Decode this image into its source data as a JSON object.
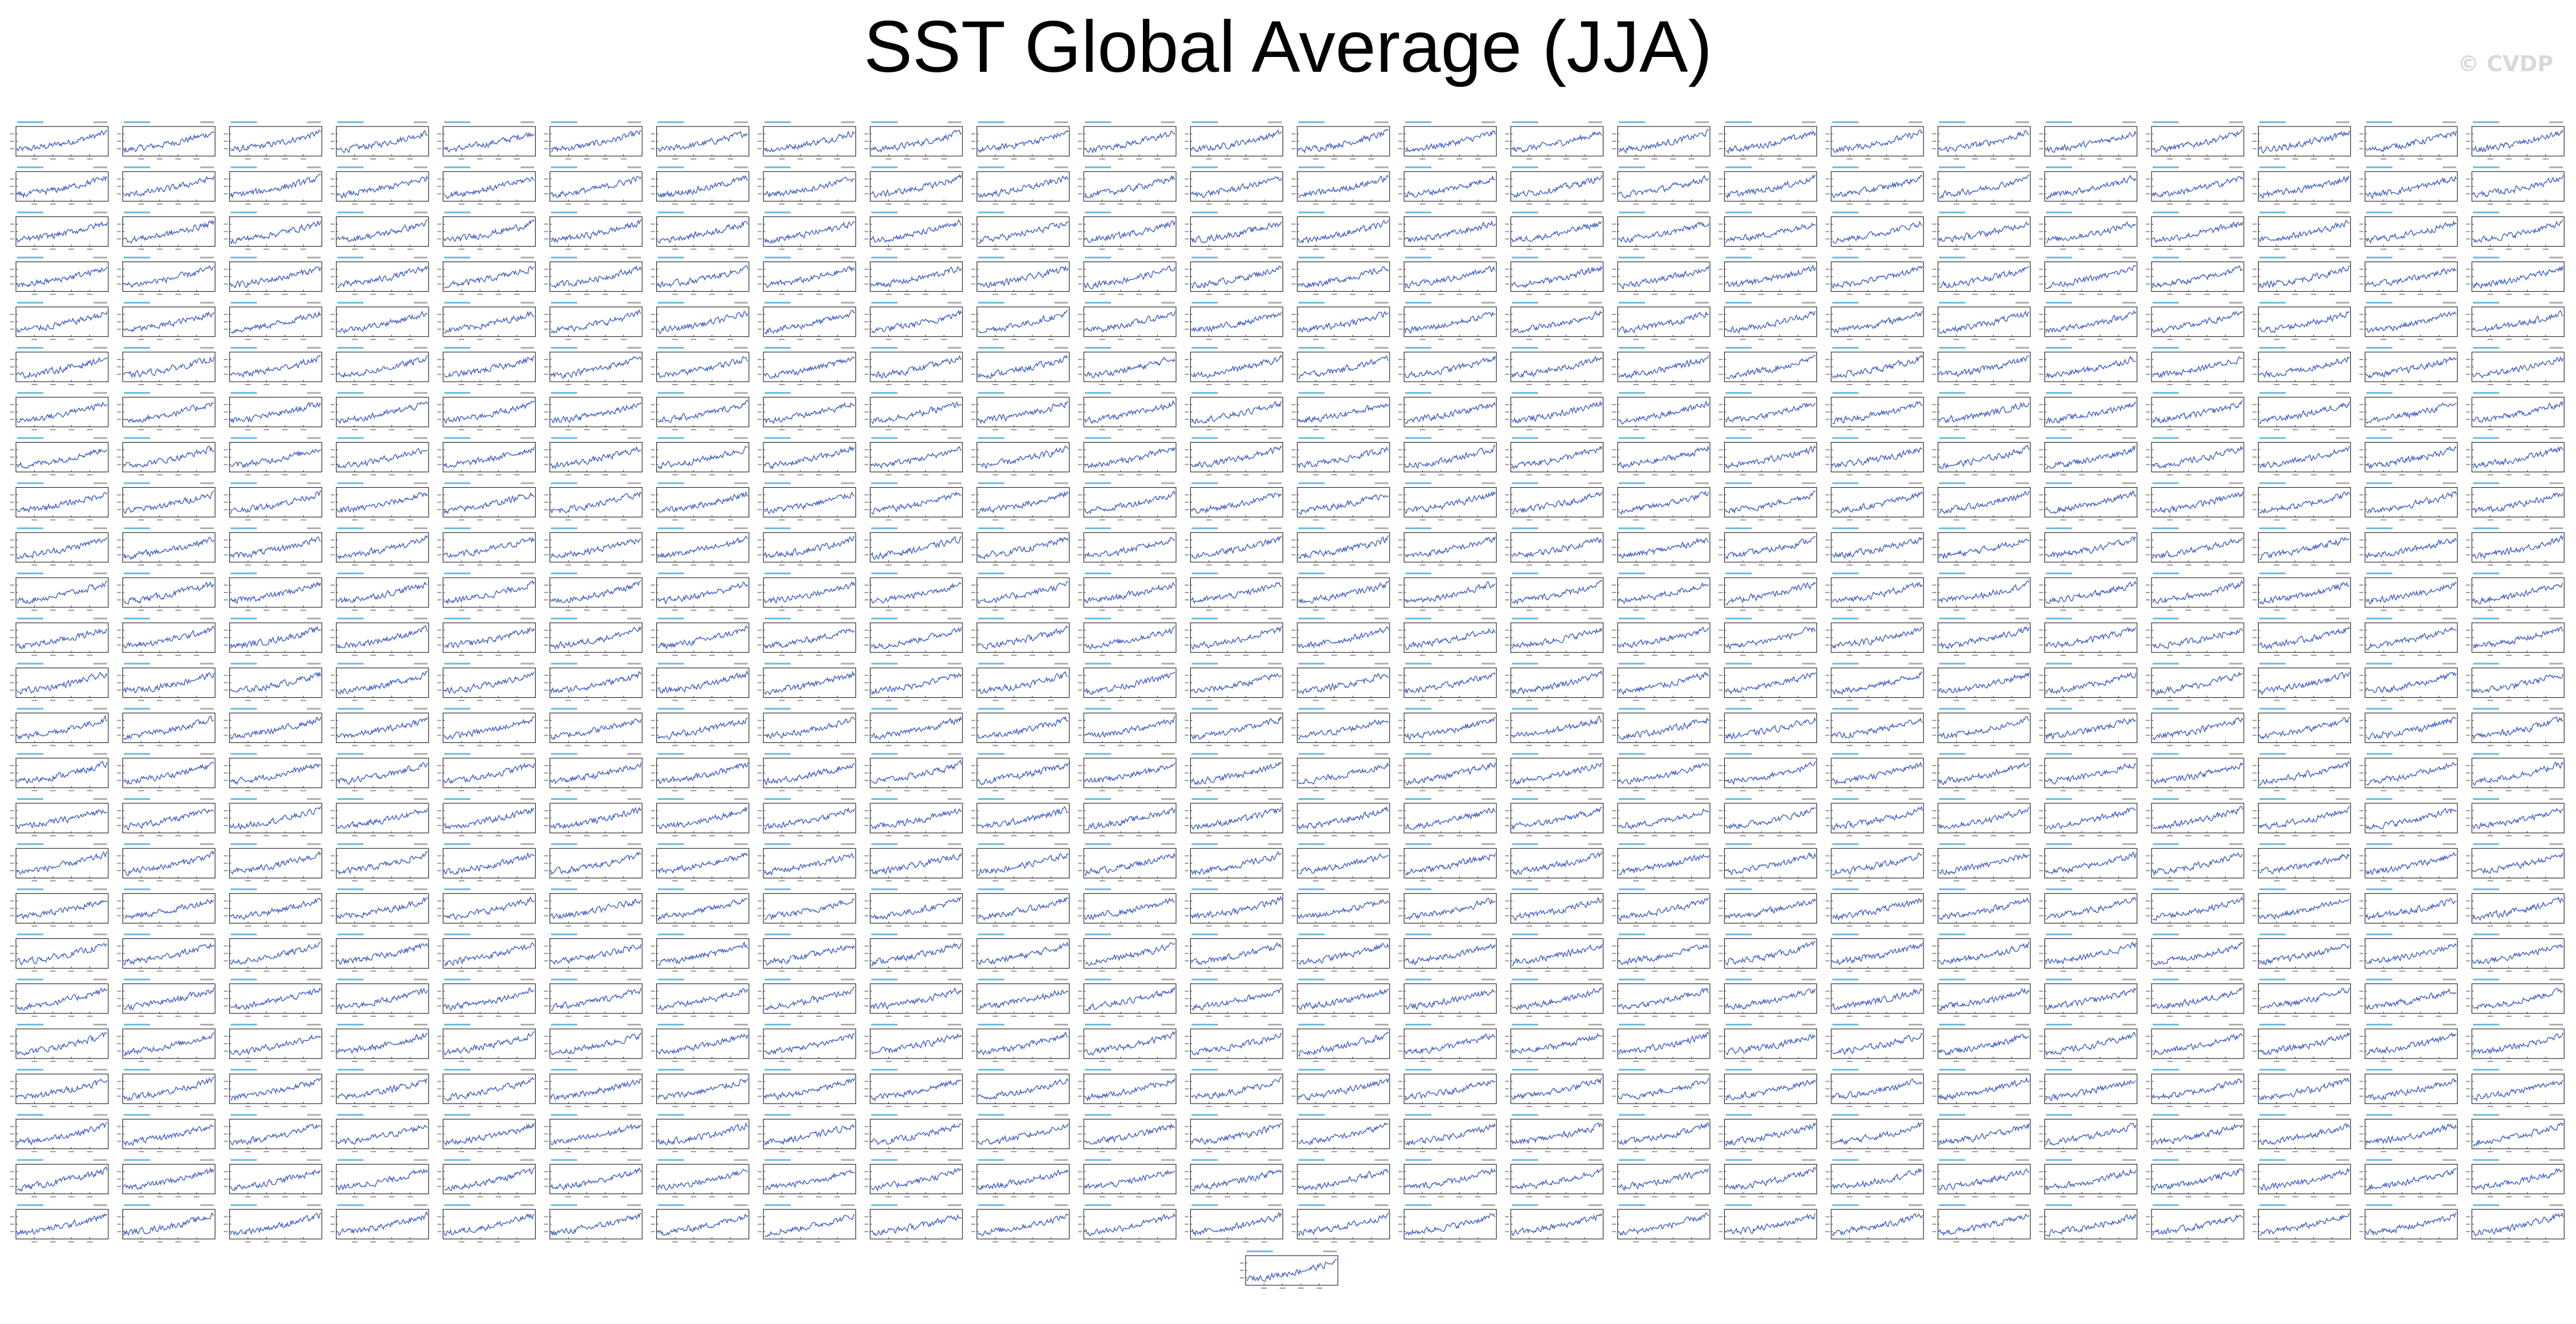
{
  "figure": {
    "title": "SST Global Average (JJA)",
    "watermark": "© CVDP"
  },
  "colors": {
    "series_line": "#3d5dc4",
    "panel_title": "#2a9fd6",
    "axis": "#000000",
    "tick_label": "#555555",
    "background": "#ffffff",
    "watermark": "#d9d9d9"
  },
  "chart_data": {
    "type": "line",
    "layout": "small-multiples",
    "panel_rows": 25,
    "panel_cols": 24,
    "extra_bottom_panels": 1,
    "panel_count": 601,
    "x_range": [
      1920,
      2020
    ],
    "y_range": [
      -0.6,
      0.8
    ],
    "trend": "increasing",
    "grid": false,
    "legend": "none"
  }
}
